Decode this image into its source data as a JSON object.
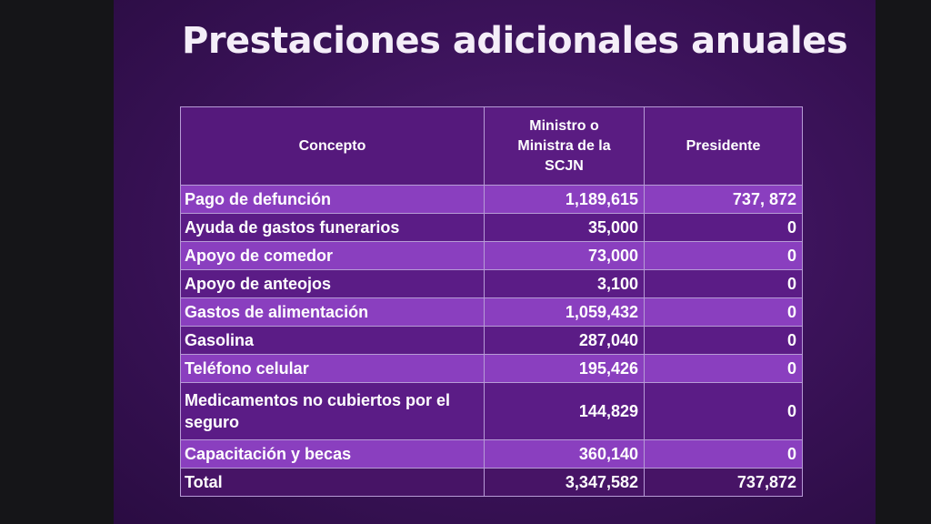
{
  "title": "Prestaciones adicionales anuales",
  "table": {
    "headers": [
      "Concepto",
      "Ministro o Ministra de la SCJN",
      "Presidente"
    ],
    "rows": [
      [
        "Pago de defunción",
        "1,189,615",
        "737, 872"
      ],
      [
        "Ayuda de gastos funerarios",
        "35,000",
        "0"
      ],
      [
        "Apoyo de comedor",
        "73,000",
        "0"
      ],
      [
        "Apoyo de anteojos",
        "3,100",
        "0"
      ],
      [
        "Gastos de alimentación",
        "1,059,432",
        "0"
      ],
      [
        "Gasolina",
        "287,040",
        "0"
      ],
      [
        "Teléfono celular",
        "195,426",
        "0"
      ],
      [
        "Medicamentos no cubiertos por el seguro",
        "144,829",
        "0"
      ],
      [
        "Capacitación y becas",
        "360,140",
        "0"
      ]
    ],
    "total": [
      "Total",
      "3,347,582",
      "737,872"
    ]
  },
  "colors": {
    "slide_background": "#3a1258",
    "row_light": "#8a3fbf",
    "row_dark": "#5b1c86",
    "border": "#b79bd6"
  }
}
